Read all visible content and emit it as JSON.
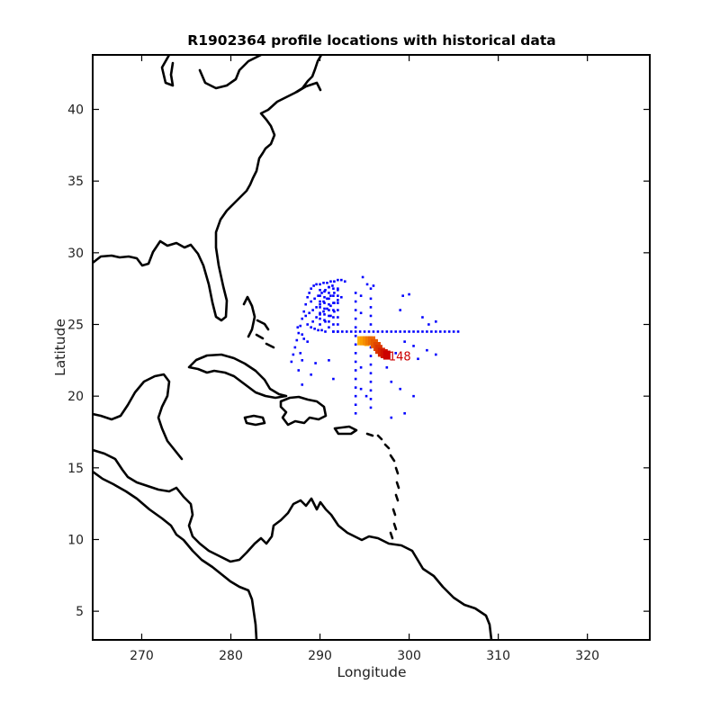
{
  "chart_data": {
    "type": "scatter",
    "title": "R1902364 profile locations with historical data",
    "xlabel": "Longitude",
    "ylabel": "Latitude",
    "xlim": [
      264.5,
      327
    ],
    "ylim": [
      3,
      43.8
    ],
    "xticks": [
      270,
      280,
      290,
      300,
      310,
      320
    ],
    "yticks": [
      5,
      10,
      15,
      20,
      25,
      30,
      35,
      40
    ],
    "grid": false,
    "colors": {
      "historical": "#0000ff",
      "coastline": "#000000",
      "profile_early": "#ffb000",
      "profile_late": "#cc0000"
    },
    "series": [
      {
        "role": "historical",
        "points": [
          [
            286.8,
            22.4
          ],
          [
            287.0,
            22.9
          ],
          [
            287.2,
            23.4
          ],
          [
            287.4,
            23.9
          ],
          [
            287.6,
            24.4
          ],
          [
            287.8,
            24.9
          ],
          [
            288.0,
            25.4
          ],
          [
            288.2,
            25.9
          ],
          [
            288.4,
            26.4
          ],
          [
            288.6,
            26.9
          ],
          [
            288.8,
            27.2
          ],
          [
            289.0,
            27.5
          ],
          [
            289.3,
            27.7
          ],
          [
            289.6,
            27.8
          ],
          [
            290.0,
            27.8
          ],
          [
            290.4,
            27.9
          ],
          [
            290.8,
            27.9
          ],
          [
            291.2,
            28.0
          ],
          [
            291.6,
            28.0
          ],
          [
            292.0,
            28.1
          ],
          [
            292.4,
            28.1
          ],
          [
            292.8,
            28.0
          ],
          [
            288.6,
            25.0
          ],
          [
            289.0,
            24.8
          ],
          [
            289.4,
            24.7
          ],
          [
            289.8,
            24.6
          ],
          [
            290.2,
            24.6
          ],
          [
            290.6,
            24.5
          ],
          [
            288.4,
            25.6
          ],
          [
            288.8,
            25.8
          ],
          [
            289.2,
            26.0
          ],
          [
            289.6,
            26.2
          ],
          [
            290.0,
            26.4
          ],
          [
            290.4,
            26.6
          ],
          [
            290.8,
            26.8
          ],
          [
            291.2,
            27.0
          ],
          [
            291.6,
            27.2
          ],
          [
            292.0,
            27.4
          ],
          [
            289.0,
            26.6
          ],
          [
            289.4,
            26.8
          ],
          [
            289.8,
            27.0
          ],
          [
            290.2,
            27.2
          ],
          [
            290.6,
            27.4
          ],
          [
            291.0,
            27.6
          ],
          [
            291.4,
            27.7
          ],
          [
            289.6,
            25.5
          ],
          [
            290.0,
            25.7
          ],
          [
            290.4,
            25.9
          ],
          [
            290.8,
            26.1
          ],
          [
            291.2,
            26.3
          ],
          [
            291.6,
            26.5
          ],
          [
            292.0,
            26.7
          ],
          [
            292.4,
            26.9
          ],
          [
            288.2,
            24.0
          ],
          [
            288.6,
            23.8
          ],
          [
            287.8,
            23.0
          ],
          [
            288.0,
            22.5
          ],
          [
            287.5,
            24.8
          ],
          [
            288.0,
            24.3
          ],
          [
            289.2,
            25.2
          ],
          [
            290.6,
            25.2
          ],
          [
            291.2,
            25.6
          ],
          [
            291.6,
            25.9
          ],
          [
            290.0,
            25.0
          ],
          [
            290.0,
            25.4
          ],
          [
            290.0,
            25.8
          ],
          [
            290.0,
            26.2
          ],
          [
            290.0,
            26.6
          ],
          [
            290.0,
            27.0
          ],
          [
            290.0,
            27.4
          ],
          [
            290.5,
            25.3
          ],
          [
            290.5,
            25.7
          ],
          [
            290.5,
            26.1
          ],
          [
            290.5,
            26.5
          ],
          [
            290.5,
            26.9
          ],
          [
            290.5,
            27.3
          ],
          [
            291.0,
            24.8
          ],
          [
            291.0,
            25.2
          ],
          [
            291.0,
            25.6
          ],
          [
            291.0,
            26.0
          ],
          [
            291.0,
            26.4
          ],
          [
            291.0,
            26.8
          ],
          [
            291.0,
            27.2
          ],
          [
            291.0,
            27.6
          ],
          [
            291.5,
            24.5
          ],
          [
            291.5,
            25.0
          ],
          [
            291.5,
            25.5
          ],
          [
            291.5,
            26.0
          ],
          [
            291.5,
            26.5
          ],
          [
            291.5,
            27.0
          ],
          [
            291.5,
            27.5
          ],
          [
            292.0,
            24.5
          ],
          [
            292.0,
            25.0
          ],
          [
            292.0,
            25.5
          ],
          [
            292.0,
            26.0
          ],
          [
            292.0,
            26.5
          ],
          [
            292.0,
            27.0
          ],
          [
            292.0,
            27.5
          ],
          [
            289.0,
            21.5
          ],
          [
            289.5,
            22.3
          ],
          [
            288.0,
            20.8
          ],
          [
            287.6,
            21.8
          ],
          [
            291.0,
            22.5
          ],
          [
            291.5,
            21.2
          ],
          [
            291.5,
            24.5
          ],
          [
            292.0,
            24.5
          ],
          [
            292.5,
            24.5
          ],
          [
            293.0,
            24.5
          ],
          [
            293.5,
            24.5
          ],
          [
            294.0,
            24.5
          ],
          [
            294.5,
            24.5
          ],
          [
            295.0,
            24.5
          ],
          [
            295.5,
            24.5
          ],
          [
            296.0,
            24.5
          ],
          [
            296.5,
            24.5
          ],
          [
            297.0,
            24.5
          ],
          [
            297.5,
            24.5
          ],
          [
            298.0,
            24.5
          ],
          [
            298.5,
            24.5
          ],
          [
            299.0,
            24.5
          ],
          [
            299.5,
            24.5
          ],
          [
            300.0,
            24.5
          ],
          [
            300.5,
            24.5
          ],
          [
            301.0,
            24.5
          ],
          [
            301.5,
            24.5
          ],
          [
            302.0,
            24.5
          ],
          [
            302.5,
            24.5
          ],
          [
            303.0,
            24.5
          ],
          [
            303.5,
            24.5
          ],
          [
            304.0,
            24.5
          ],
          [
            304.5,
            24.5
          ],
          [
            305.0,
            24.5
          ],
          [
            305.5,
            24.5
          ],
          [
            294.0,
            18.8
          ],
          [
            294.0,
            19.4
          ],
          [
            294.0,
            20.0
          ],
          [
            294.0,
            20.6
          ],
          [
            294.0,
            21.2
          ],
          [
            294.0,
            21.8
          ],
          [
            294.0,
            22.4
          ],
          [
            294.0,
            23.0
          ],
          [
            294.0,
            23.6
          ],
          [
            294.0,
            24.2
          ],
          [
            294.0,
            24.8
          ],
          [
            294.0,
            25.4
          ],
          [
            294.0,
            26.0
          ],
          [
            294.0,
            26.6
          ],
          [
            294.0,
            27.2
          ],
          [
            295.7,
            19.2
          ],
          [
            295.7,
            19.8
          ],
          [
            295.7,
            20.4
          ],
          [
            295.7,
            21.0
          ],
          [
            295.7,
            21.6
          ],
          [
            295.7,
            22.2
          ],
          [
            295.7,
            22.8
          ],
          [
            295.7,
            23.4
          ],
          [
            295.7,
            24.0
          ],
          [
            295.7,
            25.0
          ],
          [
            295.7,
            25.6
          ],
          [
            295.7,
            26.2
          ],
          [
            295.7,
            26.8
          ],
          [
            295.7,
            27.5
          ],
          [
            294.8,
            28.3
          ],
          [
            295.3,
            27.8
          ],
          [
            296.0,
            27.7
          ],
          [
            294.6,
            27.0
          ],
          [
            294.6,
            25.8
          ],
          [
            294.6,
            22.0
          ],
          [
            294.6,
            20.5
          ],
          [
            295.2,
            20.0
          ],
          [
            299.0,
            26.0
          ],
          [
            300.0,
            27.1
          ],
          [
            299.3,
            27.0
          ],
          [
            301.5,
            25.5
          ],
          [
            302.2,
            25.0
          ],
          [
            303.0,
            25.2
          ],
          [
            300.5,
            23.5
          ],
          [
            301.0,
            22.6
          ],
          [
            299.5,
            23.8
          ],
          [
            298.5,
            23.0
          ],
          [
            297.5,
            22.0
          ],
          [
            298.0,
            21.0
          ],
          [
            299.0,
            20.5
          ],
          [
            300.5,
            20.0
          ],
          [
            299.5,
            18.8
          ],
          [
            298.0,
            18.5
          ],
          [
            303.0,
            22.9
          ],
          [
            302.0,
            23.2
          ]
        ]
      },
      {
        "role": "profiles",
        "points": [
          [
            294.6,
            23.8
          ],
          [
            294.9,
            23.8
          ],
          [
            295.2,
            23.8
          ],
          [
            295.5,
            23.8
          ],
          [
            295.8,
            23.8
          ],
          [
            296.1,
            23.6
          ],
          [
            296.4,
            23.4
          ],
          [
            296.6,
            23.2
          ],
          [
            296.9,
            23.0
          ],
          [
            297.2,
            22.9
          ],
          [
            297.5,
            22.8
          ]
        ],
        "labels": [
          "1",
          "",
          "",
          "",
          "",
          "",
          "",
          "",
          "",
          "",
          "148"
        ]
      }
    ]
  }
}
